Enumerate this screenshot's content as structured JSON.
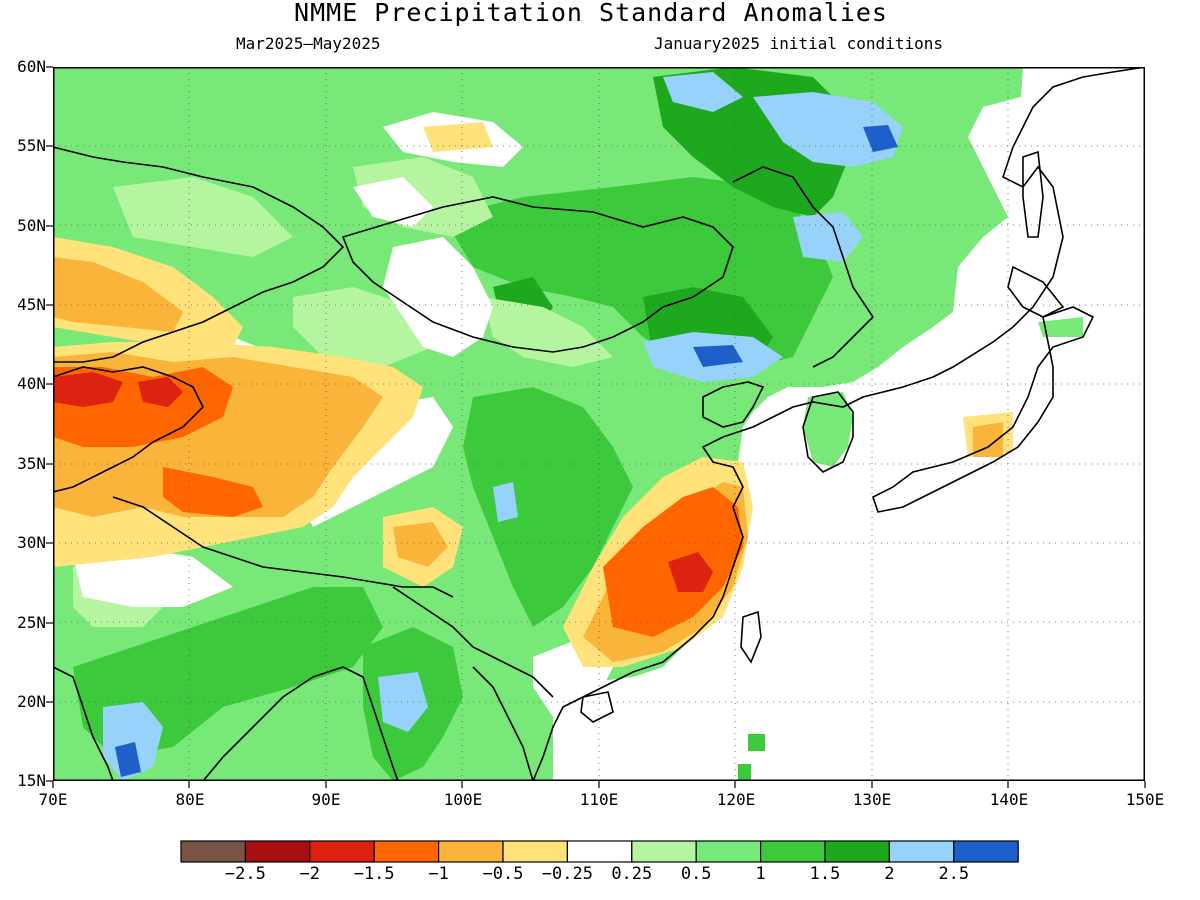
{
  "title": "NMME Precipitation Standard Anomalies",
  "subtitle_left": "Mar2025–May2025",
  "subtitle_right": "January2025 initial conditions",
  "lat_labels": [
    "60N",
    "55N",
    "50N",
    "45N",
    "40N",
    "35N",
    "30N",
    "25N",
    "20N",
    "15N"
  ],
  "lon_labels": [
    "70E",
    "80E",
    "90E",
    "100E",
    "110E",
    "120E",
    "130E",
    "140E",
    "150E"
  ],
  "colorbar": {
    "colors": [
      "#7a5546",
      "#a50f0f",
      "#dd2210",
      "#ff6600",
      "#fbb43a",
      "#ffe27a",
      "#ffffff",
      "#b5f5a0",
      "#78e878",
      "#3cca3c",
      "#1ea81e",
      "#96d2fa",
      "#1f5fcc"
    ],
    "labels": [
      "−2.5",
      "−2",
      "−1.5",
      "−1",
      "−0.5",
      "−0.25",
      "0.25",
      "0.5",
      "1",
      "1.5",
      "2",
      "2.5"
    ]
  },
  "map_colors": {
    "land_base": "#78e878",
    "green_dark": "#3cca3c",
    "green_darker": "#1ea81e",
    "green_light": "#b5f5a0",
    "white": "#ffffff",
    "yellow": "#ffe27a",
    "orange_light": "#fbb43a",
    "orange": "#ff6600",
    "red": "#dd2210",
    "blue_light": "#96d2fa",
    "blue": "#1f5fcc"
  }
}
